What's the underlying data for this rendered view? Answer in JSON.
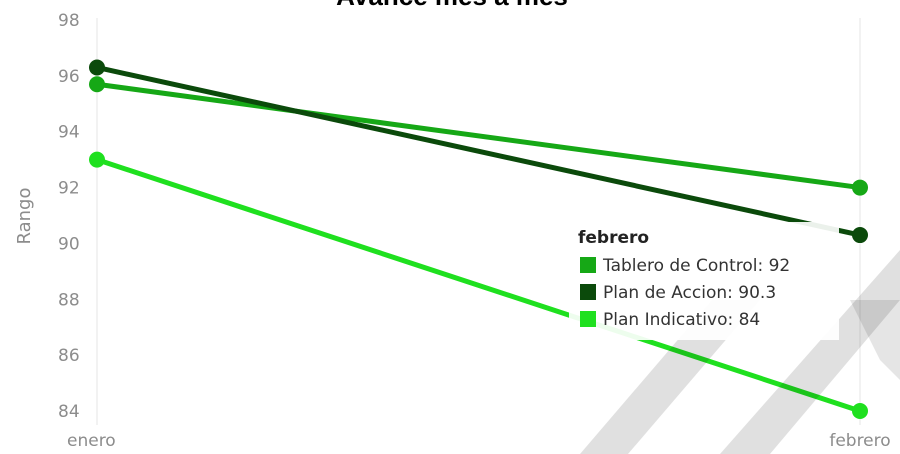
{
  "chart_data": {
    "type": "line",
    "title": "Avance mes a mes",
    "xlabel": "",
    "ylabel": "Rango",
    "categories": [
      "enero",
      "febrero"
    ],
    "ylim": [
      84,
      98
    ],
    "yticks": [
      98,
      96,
      94,
      92,
      90,
      88,
      86,
      84
    ],
    "grid": "vertical lines at categories",
    "series": [
      {
        "name": "Tablero de Control",
        "values": [
          95.7,
          92
        ],
        "color": "#16a816"
      },
      {
        "name": "Plan de Accion",
        "values": [
          96.3,
          90.3
        ],
        "color": "#0b4a0b"
      },
      {
        "name": "Plan Indicativo",
        "values": [
          93,
          84
        ],
        "color": "#1fe01f"
      }
    ],
    "tooltip": {
      "title": "febrero",
      "rows": [
        "Tablero de Control: 92",
        "Plan de Accion: 90.3",
        "Plan Indicativo: 84"
      ]
    },
    "watermark_color": "#000000"
  }
}
